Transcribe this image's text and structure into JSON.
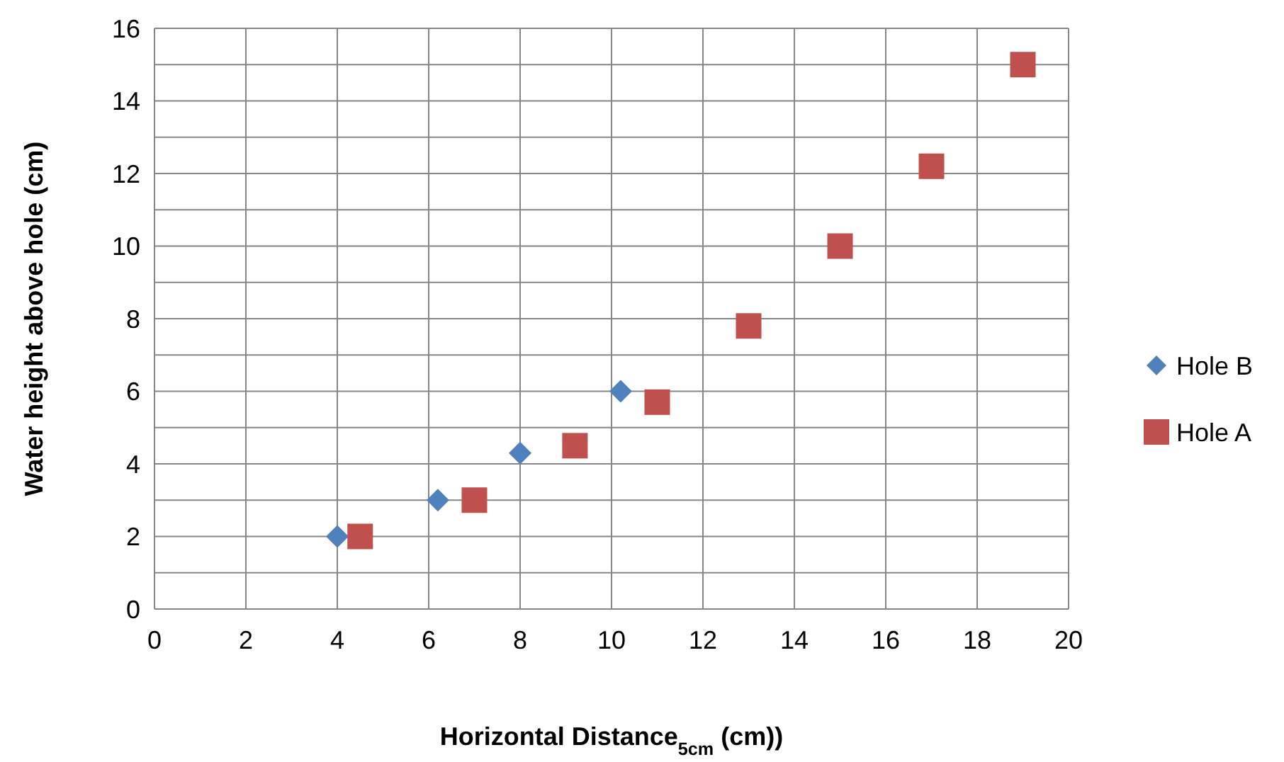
{
  "chart_data": {
    "type": "scatter",
    "xlabel": "Horizontal Distance$_{5cm}$ (cm))",
    "ylabel": "Water height above hole (cm)",
    "xlim": [
      0,
      20
    ],
    "xticks": [
      0,
      2,
      4,
      6,
      8,
      10,
      12,
      14,
      16,
      18,
      20
    ],
    "ylim": [
      0,
      16
    ],
    "yticks": [
      0,
      {
        "value": 1,
        "label": null
      },
      2,
      {
        "value": 3,
        "label": null
      },
      4,
      {
        "value": 5,
        "label": null
      },
      6,
      {
        "value": 7,
        "label": null
      },
      8,
      {
        "value": 9,
        "label": null
      },
      10,
      {
        "value": 11,
        "label": null
      },
      12,
      {
        "value": 13,
        "label": null
      },
      14,
      {
        "value": 15,
        "label": null
      },
      16
    ],
    "grid": true,
    "legend": "right",
    "series": [
      {
        "name": "Hole B",
        "color": "#4f81bd",
        "marker": "diamond",
        "x": [
          4,
          6.2,
          8,
          10.2
        ],
        "values": [
          2,
          3,
          4.3,
          6
        ]
      },
      {
        "name": "Hole A",
        "color": "#c0504d",
        "marker": "square",
        "x": [
          4.5,
          7,
          9.2,
          11,
          13,
          15,
          17,
          19
        ],
        "values": [
          2,
          3,
          4.5,
          5.7,
          7.8,
          10,
          12.2,
          15
        ]
      }
    ]
  }
}
